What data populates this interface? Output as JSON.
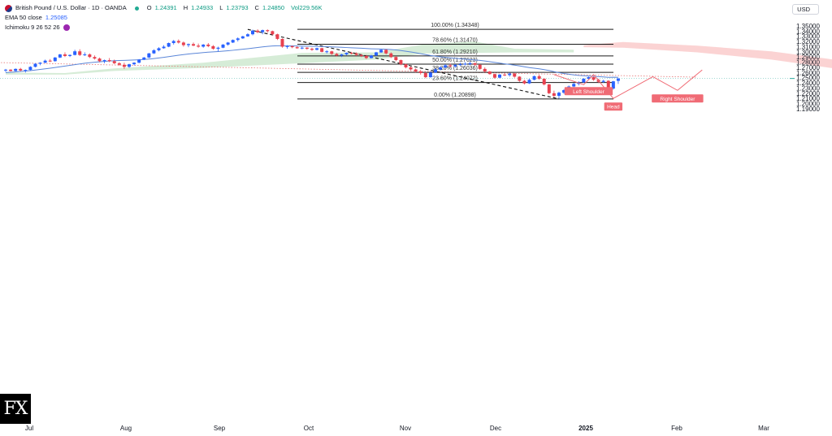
{
  "header": {
    "title": "British Pound / U.S. Dollar · 1D · OANDA",
    "ohlc": [
      {
        "key": "O",
        "val": "1.24391"
      },
      {
        "key": "H",
        "val": "1.24933"
      },
      {
        "key": "L",
        "val": "1.23793"
      },
      {
        "key": "C",
        "val": "1.24850"
      }
    ],
    "volume": "Vol229.56K",
    "ema_label": "EMA 50 close",
    "ema_value": "1.25085",
    "ichimoku_label": "Ichimoku 9 26 52 26"
  },
  "currency": "USD",
  "logo_text": "FX",
  "colors": {
    "up": "#2962ff",
    "down": "#e8414f",
    "ema": "#5b86d8",
    "fib_line": "#1a1a1a",
    "kumo_bull": "#c8e6c9",
    "kumo_bear": "#f9c4c4",
    "annotation": "#f06b75"
  },
  "chart_data": {
    "type": "candlestick",
    "symbol": "GBPUSD",
    "timeframe": "1D",
    "ylim": [
      1.195,
      1.355
    ],
    "y_ticks": [
      "1.35000",
      "1.34000",
      "1.33000",
      "1.32000",
      "1.31000",
      "1.30000",
      "1.29000",
      "1.28000",
      "1.27000",
      "1.26000",
      "1.25000",
      "1.24000",
      "1.23000",
      "1.22000",
      "1.21000",
      "1.20000",
      "1.19000"
    ],
    "x_ticks": [
      "Jul",
      "Aug",
      "Sep",
      "Oct",
      "Nov",
      "Dec",
      "2025",
      "Feb",
      "Mar"
    ],
    "fibonacci": [
      {
        "label": "100.00% (1.34348)",
        "value": 1.34348
      },
      {
        "label": "78.60% (1.31470)",
        "value": 1.3147
      },
      {
        "label": "61.80% (1.29210)",
        "value": 1.2921
      },
      {
        "label": "50.00% (1.27623)",
        "value": 1.27623
      },
      {
        "label": "38.20% (1.26036)",
        "value": 1.26036
      },
      {
        "label": "23.60% (1.24072)",
        "value": 1.24072
      },
      {
        "label": "0.00% (1.20898)",
        "value": 1.20898
      }
    ],
    "current_price": 1.2485,
    "patterns": [
      {
        "label": "Left Shoulder",
        "value": 1.2365
      },
      {
        "label": "Head",
        "value": 1.2099
      },
      {
        "label": "Right Shoulder",
        "value": 1.2255
      }
    ],
    "candles": [
      [
        1.264,
        1.267,
        1.261,
        1.2655
      ],
      [
        1.2655,
        1.2665,
        1.262,
        1.263
      ],
      [
        1.263,
        1.268,
        1.262,
        1.267
      ],
      [
        1.267,
        1.269,
        1.2625,
        1.264
      ],
      [
        1.264,
        1.266,
        1.26,
        1.265
      ],
      [
        1.265,
        1.272,
        1.264,
        1.271
      ],
      [
        1.271,
        1.278,
        1.27,
        1.277
      ],
      [
        1.277,
        1.28,
        1.274,
        1.279
      ],
      [
        1.279,
        1.285,
        1.278,
        1.283
      ],
      [
        1.283,
        1.286,
        1.28,
        1.282
      ],
      [
        1.282,
        1.29,
        1.281,
        1.289
      ],
      [
        1.289,
        1.296,
        1.288,
        1.295
      ],
      [
        1.295,
        1.299,
        1.29,
        1.292
      ],
      [
        1.292,
        1.295,
        1.29,
        1.294
      ],
      [
        1.294,
        1.304,
        1.293,
        1.301
      ],
      [
        1.301,
        1.305,
        1.292,
        1.294
      ],
      [
        1.294,
        1.299,
        1.292,
        1.295
      ],
      [
        1.295,
        1.297,
        1.288,
        1.29
      ],
      [
        1.29,
        1.293,
        1.285,
        1.287
      ],
      [
        1.287,
        1.289,
        1.28,
        1.282
      ],
      [
        1.282,
        1.285,
        1.278,
        1.284
      ],
      [
        1.284,
        1.288,
        1.28,
        1.282
      ],
      [
        1.282,
        1.285,
        1.276,
        1.278
      ],
      [
        1.278,
        1.28,
        1.273,
        1.275
      ],
      [
        1.275,
        1.279,
        1.267,
        1.271
      ],
      [
        1.271,
        1.277,
        1.269,
        1.276
      ],
      [
        1.276,
        1.28,
        1.274,
        1.279
      ],
      [
        1.279,
        1.286,
        1.278,
        1.285
      ],
      [
        1.285,
        1.29,
        1.284,
        1.289
      ],
      [
        1.289,
        1.298,
        1.288,
        1.297
      ],
      [
        1.297,
        1.305,
        1.296,
        1.303
      ],
      [
        1.303,
        1.309,
        1.301,
        1.307
      ],
      [
        1.307,
        1.313,
        1.306,
        1.31
      ],
      [
        1.31,
        1.318,
        1.309,
        1.317
      ],
      [
        1.317,
        1.323,
        1.314,
        1.321
      ],
      [
        1.321,
        1.324,
        1.316,
        1.318
      ],
      [
        1.318,
        1.32,
        1.31,
        1.313
      ],
      [
        1.313,
        1.316,
        1.309,
        1.315
      ],
      [
        1.315,
        1.318,
        1.311,
        1.312
      ],
      [
        1.312,
        1.316,
        1.308,
        1.31
      ],
      [
        1.31,
        1.315,
        1.308,
        1.314
      ],
      [
        1.314,
        1.317,
        1.309,
        1.311
      ],
      [
        1.311,
        1.313,
        1.304,
        1.306
      ],
      [
        1.306,
        1.31,
        1.301,
        1.308
      ],
      [
        1.308,
        1.315,
        1.307,
        1.314
      ],
      [
        1.314,
        1.319,
        1.312,
        1.318
      ],
      [
        1.318,
        1.324,
        1.317,
        1.323
      ],
      [
        1.323,
        1.328,
        1.32,
        1.326
      ],
      [
        1.326,
        1.331,
        1.325,
        1.33
      ],
      [
        1.33,
        1.336,
        1.329,
        1.334
      ],
      [
        1.334,
        1.343,
        1.332,
        1.341
      ],
      [
        1.341,
        1.3435,
        1.336,
        1.338
      ],
      [
        1.338,
        1.343,
        1.334,
        1.342
      ],
      [
        1.342,
        1.3434,
        1.337,
        1.34
      ],
      [
        1.34,
        1.341,
        1.332,
        1.334
      ],
      [
        1.334,
        1.335,
        1.323,
        1.325
      ],
      [
        1.325,
        1.326,
        1.308,
        1.31
      ],
      [
        1.31,
        1.313,
        1.306,
        1.311
      ],
      [
        1.311,
        1.312,
        1.307,
        1.309
      ],
      [
        1.309,
        1.311,
        1.306,
        1.307
      ],
      [
        1.307,
        1.31,
        1.305,
        1.308
      ],
      [
        1.308,
        1.309,
        1.304,
        1.306
      ],
      [
        1.306,
        1.308,
        1.302,
        1.304
      ],
      [
        1.304,
        1.308,
        1.303,
        1.307
      ],
      [
        1.307,
        1.308,
        1.299,
        1.3
      ],
      [
        1.3,
        1.303,
        1.297,
        1.301
      ],
      [
        1.301,
        1.302,
        1.294,
        1.296
      ],
      [
        1.296,
        1.298,
        1.291,
        1.293
      ],
      [
        1.293,
        1.296,
        1.29,
        1.295
      ],
      [
        1.295,
        1.299,
        1.293,
        1.298
      ],
      [
        1.298,
        1.3,
        1.295,
        1.297
      ],
      [
        1.297,
        1.299,
        1.292,
        1.294
      ],
      [
        1.294,
        1.296,
        1.29,
        1.292
      ],
      [
        1.292,
        1.294,
        1.286,
        1.288
      ],
      [
        1.288,
        1.294,
        1.287,
        1.293
      ],
      [
        1.293,
        1.3,
        1.292,
        1.299
      ],
      [
        1.299,
        1.305,
        1.298,
        1.304
      ],
      [
        1.304,
        1.305,
        1.295,
        1.297
      ],
      [
        1.297,
        1.299,
        1.288,
        1.29
      ],
      [
        1.29,
        1.292,
        1.282,
        1.284
      ],
      [
        1.284,
        1.285,
        1.274,
        1.276
      ],
      [
        1.276,
        1.277,
        1.268,
        1.27
      ],
      [
        1.27,
        1.272,
        1.264,
        1.266
      ],
      [
        1.266,
        1.268,
        1.26,
        1.262
      ],
      [
        1.262,
        1.265,
        1.256,
        1.259
      ],
      [
        1.259,
        1.261,
        1.249,
        1.251
      ],
      [
        1.251,
        1.262,
        1.25,
        1.26
      ],
      [
        1.26,
        1.268,
        1.259,
        1.266
      ],
      [
        1.266,
        1.272,
        1.264,
        1.27
      ],
      [
        1.27,
        1.276,
        1.268,
        1.274
      ],
      [
        1.274,
        1.277,
        1.27,
        1.272
      ],
      [
        1.272,
        1.276,
        1.269,
        1.275
      ],
      [
        1.275,
        1.279,
        1.273,
        1.276
      ],
      [
        1.276,
        1.28,
        1.274,
        1.277
      ],
      [
        1.277,
        1.281,
        1.274,
        1.278
      ],
      [
        1.278,
        1.279,
        1.273,
        1.275
      ],
      [
        1.275,
        1.276,
        1.265,
        1.267
      ],
      [
        1.267,
        1.27,
        1.26,
        1.262
      ],
      [
        1.262,
        1.263,
        1.256,
        1.257
      ],
      [
        1.257,
        1.258,
        1.248,
        1.25
      ],
      [
        1.25,
        1.257,
        1.249,
        1.256
      ],
      [
        1.256,
        1.259,
        1.253,
        1.255
      ],
      [
        1.255,
        1.26,
        1.252,
        1.258
      ],
      [
        1.258,
        1.259,
        1.25,
        1.252
      ],
      [
        1.252,
        1.253,
        1.242,
        1.244
      ],
      [
        1.244,
        1.246,
        1.237,
        1.239
      ],
      [
        1.239,
        1.248,
        1.238,
        1.246
      ],
      [
        1.246,
        1.254,
        1.245,
        1.253
      ],
      [
        1.253,
        1.256,
        1.246,
        1.248
      ],
      [
        1.248,
        1.249,
        1.235,
        1.237
      ],
      [
        1.237,
        1.238,
        1.218,
        1.22
      ],
      [
        1.22,
        1.225,
        1.212,
        1.215
      ],
      [
        1.215,
        1.223,
        1.21,
        1.221
      ],
      [
        1.221,
        1.228,
        1.219,
        1.226
      ],
      [
        1.226,
        1.235,
        1.224,
        1.233
      ],
      [
        1.233,
        1.24,
        1.231,
        1.238
      ],
      [
        1.238,
        1.243,
        1.235,
        1.241
      ],
      [
        1.241,
        1.249,
        1.24,
        1.248
      ],
      [
        1.248,
        1.252,
        1.246,
        1.251
      ],
      [
        1.251,
        1.252,
        1.244,
        1.246
      ],
      [
        1.246,
        1.248,
        1.24,
        1.242
      ],
      [
        1.242,
        1.246,
        1.24,
        1.244
      ],
      [
        1.244,
        1.245,
        1.226,
        1.229
      ],
      [
        1.229,
        1.244,
        1.227,
        1.243
      ],
      [
        1.24391,
        1.24933,
        1.23793,
        1.2485
      ]
    ],
    "ema50": [
      1.26,
      1.2605,
      1.2612,
      1.262,
      1.2628,
      1.2637,
      1.2648,
      1.266,
      1.2672,
      1.2684,
      1.2697,
      1.2712,
      1.2725,
      1.2738,
      1.2752,
      1.2766,
      1.2779,
      1.279,
      1.28,
      1.2808,
      1.2815,
      1.2822,
      1.2828,
      1.2832,
      1.2835,
      1.2838,
      1.2842,
      1.2847,
      1.2853,
      1.2861,
      1.2871,
      1.2882,
      1.2894,
      1.2908,
      1.2922,
      1.2935,
      1.2947,
      1.2958,
      1.2968,
      1.2977,
      1.2986,
      1.2994,
      1.3,
      1.3006,
      1.3013,
      1.3021,
      1.303,
      1.304,
      1.305,
      1.3061,
      1.3073,
      1.3084,
      1.3095,
      1.3106,
      1.3114,
      1.3118,
      1.3117,
      1.3116,
      1.3115,
      1.3114,
      1.3112,
      1.311,
      1.3108,
      1.3106,
      1.3103,
      1.31,
      1.3096,
      1.3091,
      1.3087,
      1.3083,
      1.3079,
      1.3075,
      1.307,
      1.3064,
      1.3059,
      1.3056,
      1.3054,
      1.305,
      1.3044,
      1.3036,
      1.3025,
      1.3012,
      1.2998,
      1.2982,
      1.2965,
      1.2946,
      1.2929,
      1.2915,
      1.2903,
      1.2893,
      1.2883,
      1.2874,
      1.2866,
      1.2858,
      1.2851,
      1.2843,
      1.2834,
      1.2823,
      1.281,
      1.2795,
      1.2781,
      1.2768,
      1.2756,
      1.2743,
      1.2728,
      1.2711,
      1.2696,
      1.2683,
      1.2671,
      1.2657,
      1.2638,
      1.2617,
      1.2598,
      1.2581,
      1.2567,
      1.2555,
      1.2545,
      1.2538,
      1.2532,
      1.2526,
      1.252,
      1.2515,
      1.2508,
      1.251,
      1.2508
    ],
    "kumo_bull_upper": [
      [
        0,
        1.26
      ],
      [
        12,
        1.259
      ],
      [
        22,
        1.268
      ],
      [
        40,
        1.279
      ],
      [
        60,
        1.298
      ],
      [
        75,
        1.299
      ],
      [
        85,
        1.315
      ],
      [
        95,
        1.32
      ],
      [
        103,
        1.306
      ],
      [
        115,
        1.304
      ]
    ],
    "kumo_bull_lower": [
      [
        0,
        1.256
      ],
      [
        12,
        1.256
      ],
      [
        22,
        1.263
      ],
      [
        40,
        1.269
      ],
      [
        60,
        1.278
      ],
      [
        75,
        1.285
      ],
      [
        85,
        1.297
      ],
      [
        95,
        1.298
      ],
      [
        103,
        1.299
      ],
      [
        115,
        1.299
      ]
    ],
    "kumo_bear_upper": [
      [
        117,
        1.313
      ],
      [
        125,
        1.319
      ],
      [
        140,
        1.312
      ],
      [
        155,
        1.301
      ],
      [
        170,
        1.282
      ],
      [
        185,
        1.269
      ],
      [
        200,
        1.256
      ],
      [
        215,
        1.248
      ]
    ],
    "kumo_bear_lower": [
      [
        117,
        1.309
      ],
      [
        125,
        1.308
      ],
      [
        140,
        1.299
      ],
      [
        155,
        1.285
      ],
      [
        170,
        1.265
      ],
      [
        185,
        1.251
      ],
      [
        200,
        1.243
      ],
      [
        215,
        1.236
      ]
    ],
    "projection_line": [
      [
        -5,
        1.28
      ],
      [
        140,
        1.251
      ]
    ],
    "trend_line": [
      [
        49,
        1.3434
      ],
      [
        112,
        1.209
      ]
    ]
  }
}
